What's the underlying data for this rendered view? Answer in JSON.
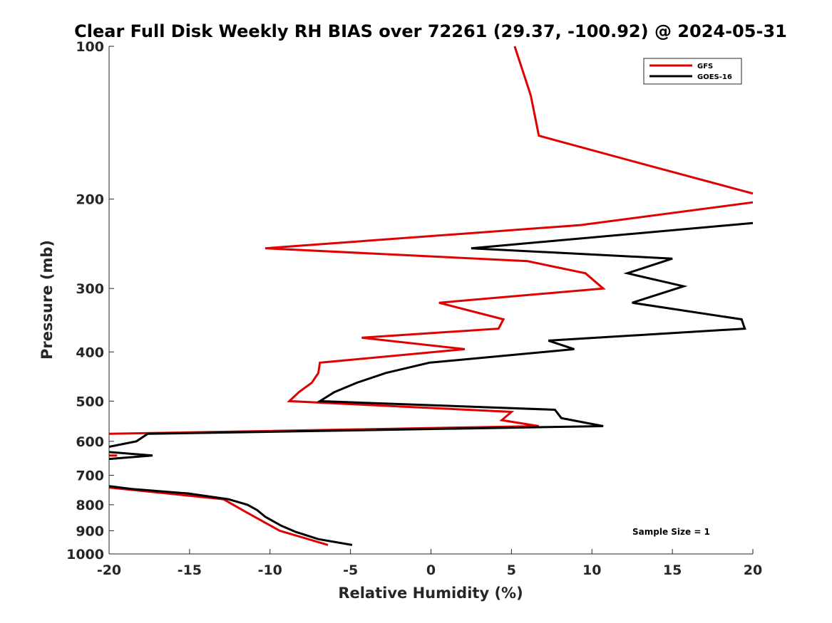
{
  "chart_data": {
    "type": "line",
    "title": "Clear Full Disk Weekly RH BIAS over 72261 (29.37, -100.92) @ 2024-05-31",
    "xlabel": "Relative Humidity (%)",
    "ylabel": "Pressure (mb)",
    "xlim": [
      -20,
      20
    ],
    "ylim": [
      100,
      1000
    ],
    "y_scale": "log",
    "y_reversed": true,
    "x_ticks": [
      "-20",
      "-15",
      "-10",
      "-5",
      "0",
      "5",
      "10",
      "15",
      "20"
    ],
    "y_ticks": [
      "100",
      "200",
      "300",
      "400",
      "500",
      "600",
      "700",
      "800",
      "900",
      "1000"
    ],
    "grid": false,
    "legend_position": "top-right",
    "annotation": "Sample Size = 1",
    "series": [
      {
        "name": "GFS",
        "color": "#e00000",
        "points": [
          [
            5.2,
            100
          ],
          [
            6.2,
            125
          ],
          [
            6.7,
            150
          ],
          [
            13.0,
            170
          ],
          [
            20.0,
            195
          ],
          null,
          [
            20.0,
            203
          ],
          [
            9.3,
            225
          ],
          [
            -10.3,
            250
          ],
          [
            6.0,
            265
          ],
          [
            9.6,
            280
          ],
          [
            10.7,
            300
          ],
          [
            0.5,
            320
          ],
          [
            4.5,
            345
          ],
          [
            4.2,
            360
          ],
          [
            -4.3,
            375
          ],
          [
            2.1,
            395
          ],
          [
            -6.9,
            420
          ],
          [
            -7.0,
            440
          ],
          [
            -7.4,
            460
          ],
          [
            -8.2,
            480
          ],
          [
            -8.8,
            500
          ],
          [
            5.0,
            525
          ],
          [
            4.4,
            545
          ],
          [
            6.7,
            560
          ],
          [
            -20.0,
            580
          ],
          null,
          [
            -20.0,
            640
          ],
          [
            -19.5,
            640
          ],
          null,
          [
            -20.0,
            740
          ],
          [
            -12.9,
            780
          ],
          [
            -11.4,
            830
          ],
          [
            -9.4,
            900
          ],
          [
            -6.4,
            960
          ]
        ]
      },
      {
        "name": "GOES-16",
        "color": "#000000",
        "points": [
          [
            20.0,
            223
          ],
          [
            2.5,
            250
          ],
          [
            15.0,
            262
          ],
          [
            12.2,
            280
          ],
          [
            15.7,
            297
          ],
          [
            12.5,
            320
          ],
          [
            19.3,
            345
          ],
          [
            19.5,
            360
          ],
          [
            7.3,
            380
          ],
          [
            8.9,
            395
          ],
          [
            -0.1,
            420
          ],
          [
            -2.8,
            440
          ],
          [
            -4.6,
            460
          ],
          [
            -6.0,
            480
          ],
          [
            -6.9,
            500
          ],
          [
            7.7,
            520
          ],
          [
            8.1,
            540
          ],
          [
            10.7,
            560
          ],
          [
            -17.6,
            580
          ],
          [
            -18.3,
            600
          ],
          [
            -20.0,
            615
          ],
          null,
          [
            -20.0,
            630
          ],
          [
            -17.3,
            640
          ],
          [
            -20.0,
            650
          ],
          null,
          [
            -20.0,
            735
          ],
          [
            -18.6,
            745
          ],
          [
            -15.1,
            760
          ],
          [
            -12.6,
            780
          ],
          [
            -11.4,
            800
          ],
          [
            -10.8,
            820
          ],
          [
            -10.3,
            845
          ],
          [
            -9.3,
            880
          ],
          [
            -8.4,
            905
          ],
          [
            -7.0,
            935
          ],
          [
            -4.9,
            960
          ]
        ]
      }
    ]
  }
}
